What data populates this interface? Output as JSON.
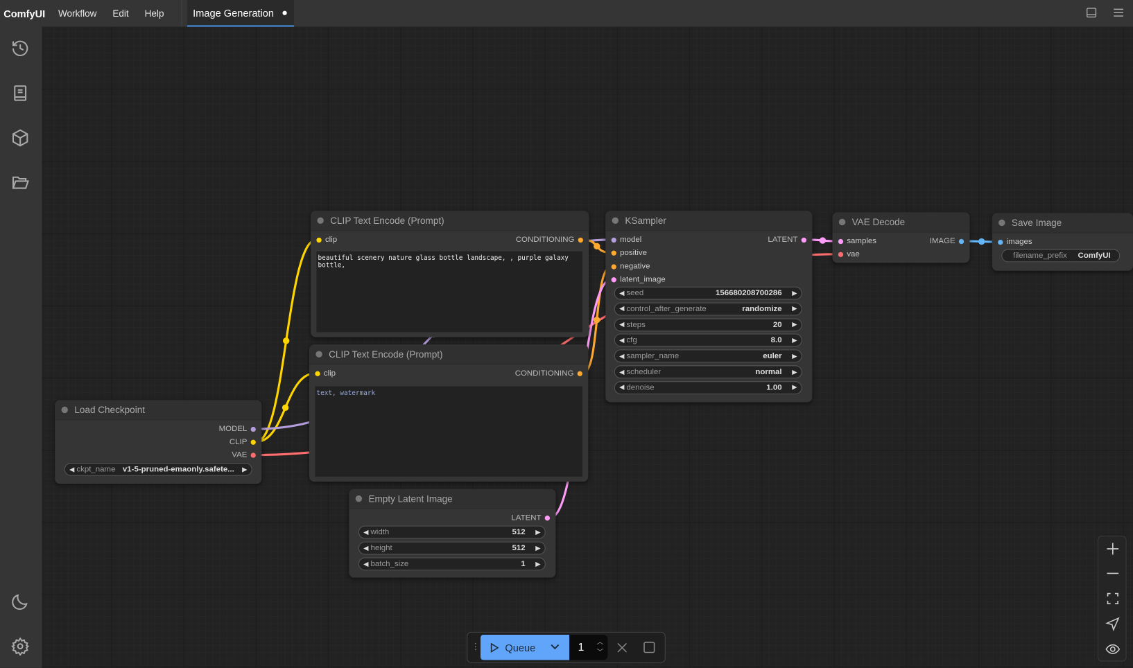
{
  "topbar": {
    "logo": "ComfyUI",
    "menu": [
      "Workflow",
      "Edit",
      "Help"
    ],
    "tab": "Image Generation",
    "icons": [
      "panel-toggle-icon",
      "hamburger-menu-icon"
    ]
  },
  "sidebar": {
    "icons": [
      "history-icon",
      "node-library-icon",
      "model-library-icon",
      "workflows-folder-icon",
      "theme-moon-icon",
      "settings-gear-icon"
    ]
  },
  "colors": {
    "clip": "#ffd500",
    "model": "#b39ddb",
    "vae": "#ff6e6e",
    "conditioning": "#ffa931",
    "latent": "#ff9cf9",
    "image": "#64b5f6",
    "queue": "#60a5fa"
  },
  "nodes": {
    "clip1": {
      "title": "CLIP Text Encode (Prompt)",
      "input": "clip",
      "output": "CONDITIONING",
      "text": "beautiful scenery nature glass bottle landscape, , purple galaxy bottle,"
    },
    "clip2": {
      "title": "CLIP Text Encode (Prompt)",
      "input": "clip",
      "output": "CONDITIONING",
      "text": "text, watermark"
    },
    "ksampler": {
      "title": "KSampler",
      "inputs": [
        "model",
        "positive",
        "negative",
        "latent_image"
      ],
      "output": "LATENT",
      "widgets": [
        {
          "label": "seed",
          "value": "156680208700286"
        },
        {
          "label": "control_after_generate",
          "value": "randomize"
        },
        {
          "label": "steps",
          "value": "20"
        },
        {
          "label": "cfg",
          "value": "8.0"
        },
        {
          "label": "sampler_name",
          "value": "euler"
        },
        {
          "label": "scheduler",
          "value": "normal"
        },
        {
          "label": "denoise",
          "value": "1.00"
        }
      ]
    },
    "vae": {
      "title": "VAE Decode",
      "inputs": [
        "samples",
        "vae"
      ],
      "output": "IMAGE"
    },
    "save": {
      "title": "Save Image",
      "input": "images",
      "widget": {
        "label": "filename_prefix",
        "value": "ComfyUI"
      }
    },
    "ckpt": {
      "title": "Load Checkpoint",
      "outputs": [
        "MODEL",
        "CLIP",
        "VAE"
      ],
      "widget": {
        "label": "ckpt_name",
        "value": "v1-5-pruned-emaonly.safete..."
      }
    },
    "latent": {
      "title": "Empty Latent Image",
      "output": "LATENT",
      "widgets": [
        {
          "label": "width",
          "value": "512"
        },
        {
          "label": "height",
          "value": "512"
        },
        {
          "label": "batch_size",
          "value": "1"
        }
      ]
    }
  },
  "queue": {
    "label": "Queue",
    "count": "1"
  }
}
